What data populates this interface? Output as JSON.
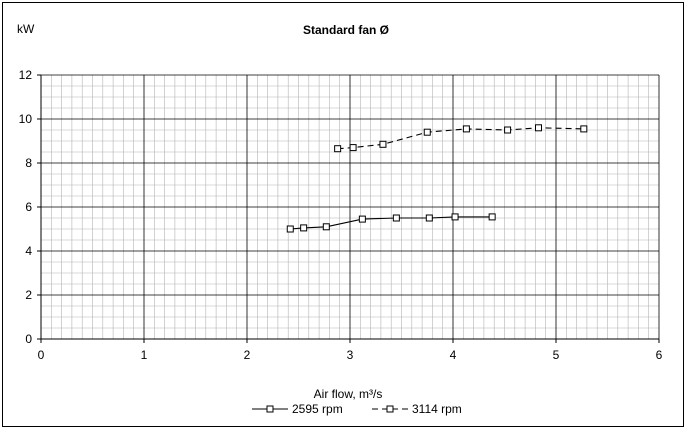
{
  "chart_data": {
    "type": "line",
    "title": "Standard fan Ø",
    "ylabel": "kW",
    "xlabel": "Air flow, m³/s",
    "xlim": [
      0,
      6
    ],
    "ylim": [
      0,
      12
    ],
    "x_ticks": [
      0,
      1,
      2,
      3,
      4,
      5,
      6
    ],
    "y_ticks": [
      0,
      2,
      4,
      6,
      8,
      10,
      12
    ],
    "grid": true,
    "legend_position": "bottom-center",
    "series": [
      {
        "name": "2595 rpm",
        "line_style": "solid",
        "marker": "square",
        "x": [
          2.42,
          2.55,
          2.77,
          3.12,
          3.45,
          3.77,
          4.02,
          4.38
        ],
        "y": [
          5.0,
          5.05,
          5.1,
          5.45,
          5.5,
          5.5,
          5.55,
          5.55
        ]
      },
      {
        "name": "3114 rpm",
        "line_style": "dashed",
        "marker": "square",
        "x": [
          2.88,
          3.03,
          3.32,
          3.75,
          4.13,
          4.53,
          4.83,
          5.27
        ],
        "y": [
          8.65,
          8.7,
          8.85,
          9.4,
          9.55,
          9.5,
          9.6,
          9.55
        ]
      }
    ]
  }
}
